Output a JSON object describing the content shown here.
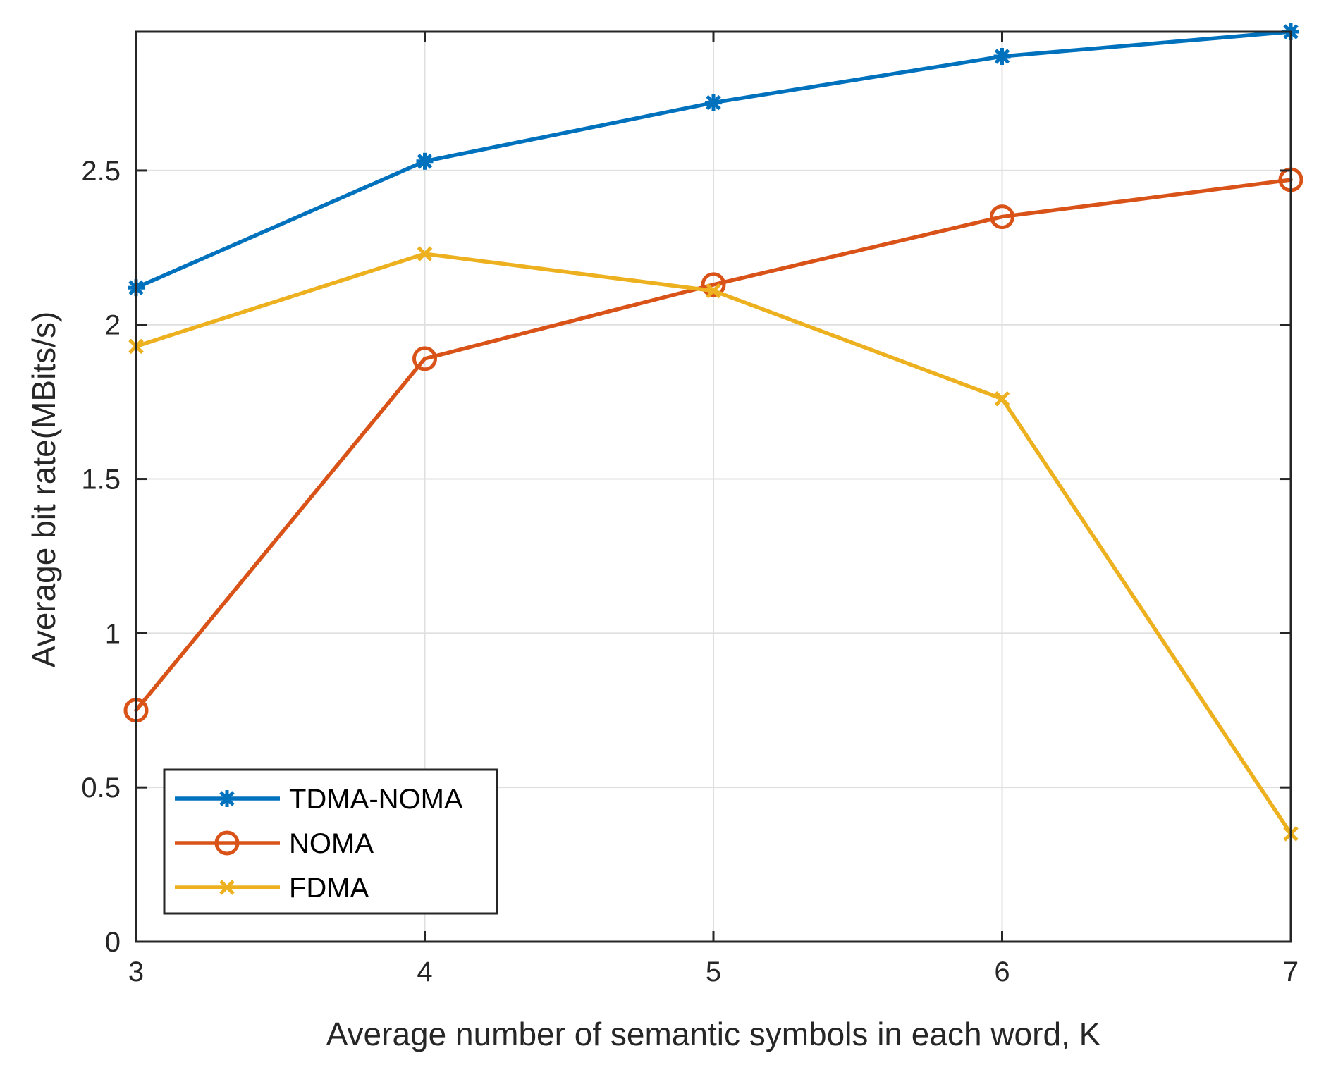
{
  "chart_data": {
    "type": "line",
    "title": "",
    "xlabel": "Average number of semantic symbols in each word, K",
    "ylabel": "Average bit rate(MBits/s)",
    "x": [
      3,
      4,
      5,
      6,
      7
    ],
    "xlim": [
      3,
      7
    ],
    "ylim": [
      0,
      2.95
    ],
    "xticks": [
      3,
      4,
      5,
      6,
      7
    ],
    "xtick_labels": [
      "3",
      "4",
      "5",
      "6",
      "7"
    ],
    "yticks": [
      0,
      0.5,
      1,
      1.5,
      2,
      2.5
    ],
    "ytick_labels": [
      "0",
      "0.5",
      "1",
      "1.5",
      "2",
      "2.5"
    ],
    "grid": true,
    "legend_position": "bottom-left",
    "series": [
      {
        "name": "TDMA-NOMA",
        "values": [
          2.12,
          2.53,
          2.72,
          2.87,
          2.95
        ],
        "color": "#0072BD",
        "marker": "asterisk"
      },
      {
        "name": "NOMA",
        "values": [
          0.75,
          1.89,
          2.13,
          2.35,
          2.47
        ],
        "color": "#D95319",
        "marker": "circle"
      },
      {
        "name": "FDMA",
        "values": [
          1.93,
          2.23,
          2.11,
          1.76,
          0.35
        ],
        "color": "#EDB120",
        "marker": "x"
      }
    ]
  }
}
